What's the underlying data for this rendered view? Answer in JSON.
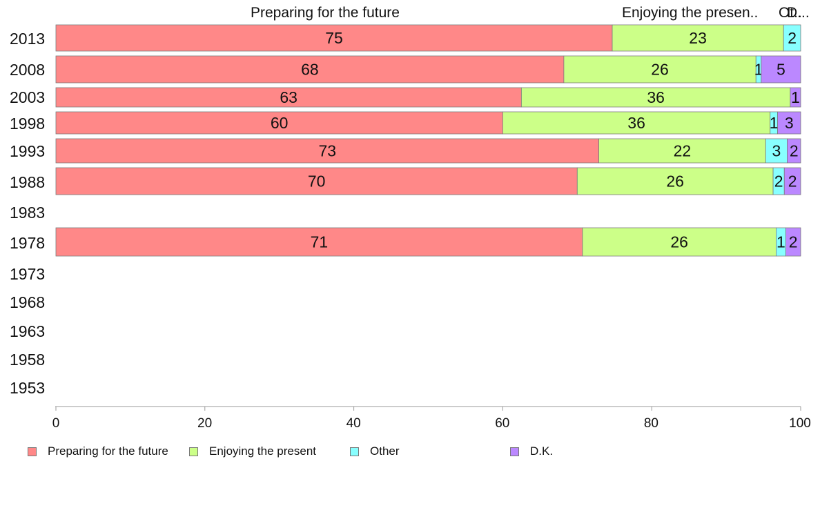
{
  "chart_data": {
    "type": "bar",
    "orientation": "horizontal",
    "stacked": true,
    "top_labels": [
      "Preparing for the future",
      "Enjoying the presen..",
      "Ot..",
      "D..."
    ],
    "categories": [
      "2013",
      "2008",
      "2003",
      "1998",
      "1993",
      "1988",
      "1983",
      "1978",
      "1973",
      "1968",
      "1963",
      "1958",
      "1953"
    ],
    "series": [
      {
        "name": "Preparing for the future",
        "color": "#ff8888",
        "values": [
          75,
          68,
          63,
          60,
          73,
          70,
          null,
          71,
          null,
          null,
          null,
          null,
          null
        ],
        "exact": [
          74.7,
          68.2,
          62.5,
          60.0,
          72.9,
          70.0,
          null,
          70.7,
          null,
          null,
          null,
          null,
          null
        ]
      },
      {
        "name": "Enjoying the present",
        "color": "#ccff88",
        "values": [
          23,
          26,
          36,
          36,
          22,
          26,
          null,
          26,
          null,
          null,
          null,
          null,
          null
        ],
        "exact": [
          23.0,
          25.8,
          36.1,
          35.9,
          22.4,
          26.3,
          null,
          26.0,
          null,
          null,
          null,
          null,
          null
        ]
      },
      {
        "name": "Other",
        "color": "#88ffff",
        "values": [
          2,
          1,
          null,
          1,
          3,
          2,
          null,
          1,
          null,
          null,
          null,
          null,
          null
        ],
        "exact": [
          2.3,
          0.7,
          null,
          1.0,
          2.9,
          1.5,
          null,
          1.3,
          null,
          null,
          null,
          null,
          null
        ]
      },
      {
        "name": "D.K.",
        "color": "#bb88ff",
        "values": [
          null,
          5,
          1,
          3,
          2,
          2,
          null,
          2,
          null,
          null,
          null,
          null,
          null
        ],
        "exact": [
          null,
          5.3,
          1.4,
          3.1,
          1.8,
          2.2,
          null,
          2.0,
          null,
          null,
          null,
          null,
          null
        ]
      }
    ],
    "xlim": [
      0,
      100
    ],
    "xticks": [
      "0",
      "20",
      "40",
      "60",
      "80",
      "100"
    ],
    "xlabel": "",
    "ylabel": "",
    "grid": false,
    "legend_position": "bottom"
  }
}
